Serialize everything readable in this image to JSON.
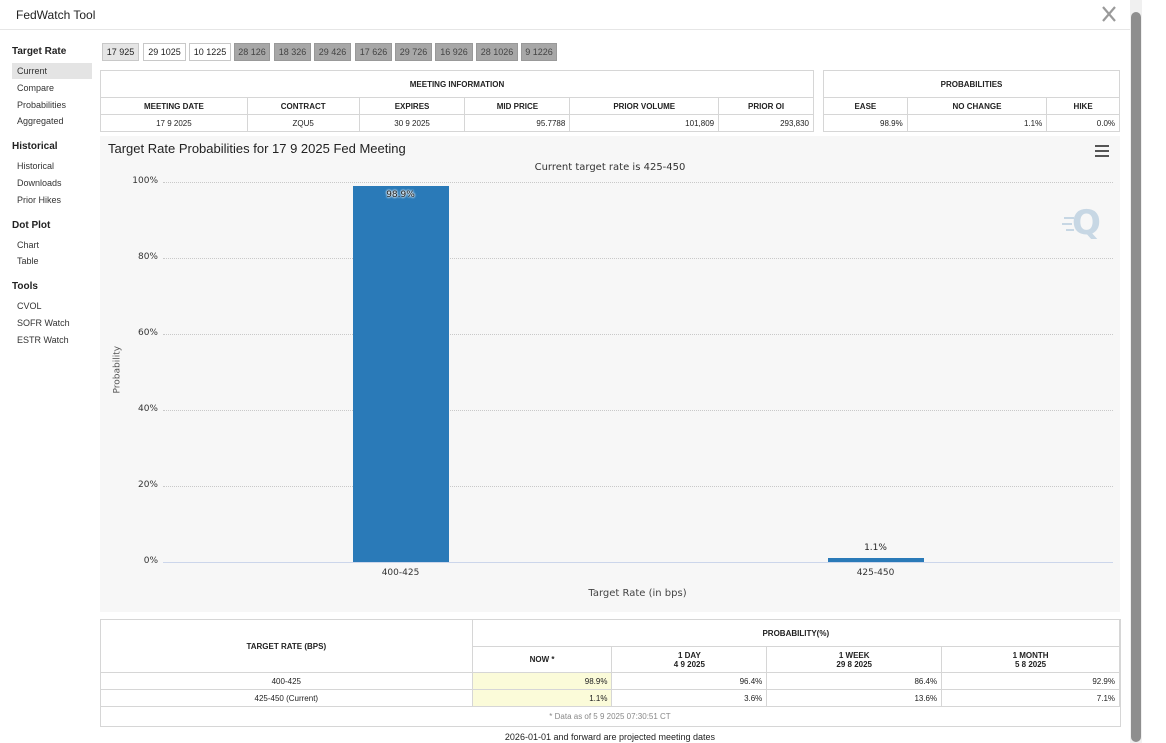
{
  "window": {
    "title": "FedWatch Tool"
  },
  "sidebar": {
    "sections": [
      {
        "heading": "Target Rate",
        "items": [
          "Current",
          "Compare",
          "Probabilities",
          "Aggregated"
        ]
      },
      {
        "heading": "Historical",
        "items": [
          "Historical",
          "Downloads",
          "Prior Hikes"
        ]
      },
      {
        "heading": "Dot Plot",
        "items": [
          "Chart",
          "Table"
        ]
      },
      {
        "heading": "Tools",
        "items": [
          "CVOL",
          "SOFR Watch",
          "ESTR Watch"
        ]
      }
    ]
  },
  "meeting_tabs": [
    "17 925",
    "29 1025",
    "10 1225",
    "28 126",
    "18 326",
    "29 426",
    "17 626",
    "29 726",
    "16 926",
    "28 1026",
    "9 1226"
  ],
  "meeting_info": {
    "header": "MEETING INFORMATION",
    "columns": [
      "MEETING DATE",
      "CONTRACT",
      "EXPIRES",
      "MID PRICE",
      "PRIOR VOLUME",
      "PRIOR OI"
    ],
    "row": [
      "17 9 2025",
      "ZQU5",
      "30 9 2025",
      "95.7788",
      "101,809",
      "293,830"
    ]
  },
  "probabilities": {
    "header": "PROBABILITIES",
    "columns": [
      "EASE",
      "NO CHANGE",
      "HIKE"
    ],
    "row": [
      "98.9%",
      "1.1%",
      "0.0%"
    ]
  },
  "chart_data": {
    "type": "bar",
    "title": "Target Rate Probabilities for 17 9 2025 Fed Meeting",
    "subtitle": "Current target rate is 425-450",
    "xlabel": "Target Rate (in bps)",
    "ylabel": "Probability",
    "categories": [
      "400-425",
      "425-450"
    ],
    "values": [
      98.9,
      1.1
    ],
    "data_labels": [
      "98.9%",
      "1.1%"
    ],
    "ylim": [
      0,
      100
    ],
    "yticks": [
      "0%",
      "20%",
      "40%",
      "60%",
      "80%",
      "100%"
    ],
    "bar_color": "#2a7ab8",
    "grid": true,
    "legend": "none"
  },
  "prob_table": {
    "col_target": "TARGET RATE (BPS)",
    "col_prob": "PROBABILITY(%)",
    "subcols": [
      {
        "label": "NOW *",
        "date": ""
      },
      {
        "label": "1 DAY",
        "date": "4 9 2025"
      },
      {
        "label": "1 WEEK",
        "date": "29 8 2025"
      },
      {
        "label": "1 MONTH",
        "date": "5 8 2025"
      }
    ],
    "rows": [
      {
        "rate": "400-425",
        "values": [
          "98.9%",
          "96.4%",
          "86.4%",
          "92.9%"
        ]
      },
      {
        "rate": "425-450 (Current)",
        "values": [
          "1.1%",
          "3.6%",
          "13.6%",
          "7.1%"
        ]
      }
    ],
    "note": "* Data as of 5 9 2025 07:30:51 CT"
  },
  "footer": "2026-01-01 and forward are projected meeting dates"
}
